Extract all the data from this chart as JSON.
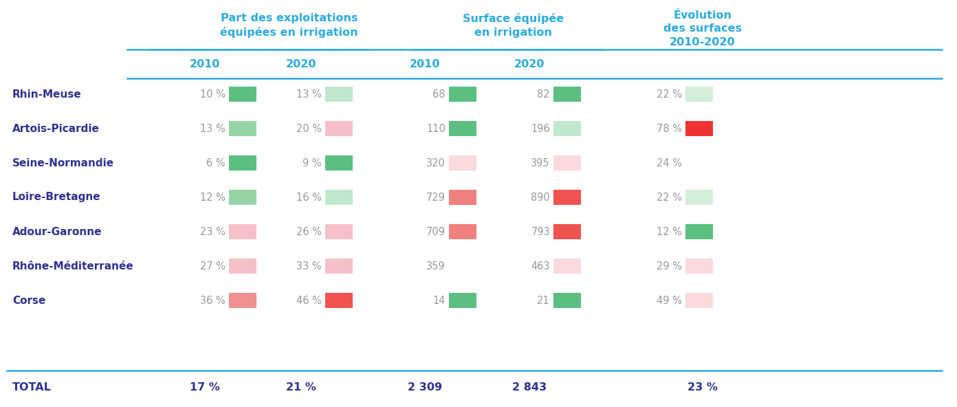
{
  "regions": [
    "Rhin-Meuse",
    "Artois-Picardie",
    "Seine-Normandie",
    "Loire-Bretagne",
    "Adour-Garonne",
    "Rhône-Méditerranée",
    "Corse"
  ],
  "expl_2010": [
    10,
    13,
    6,
    12,
    23,
    27,
    36
  ],
  "expl_2020": [
    13,
    20,
    9,
    16,
    26,
    33,
    46
  ],
  "surf_2010": [
    68,
    110,
    320,
    729,
    709,
    359,
    14
  ],
  "surf_2020": [
    82,
    196,
    395,
    890,
    793,
    463,
    21
  ],
  "evol": [
    22,
    78,
    24,
    22,
    12,
    29,
    49
  ],
  "total_expl_2010": "17 %",
  "total_expl_2020": "21 %",
  "total_surf_2010": "2 309",
  "total_surf_2020": "2 843",
  "total_evol": "23 %",
  "col_header1": "Part des exploitations\néquipées en irrigation",
  "col_header2": "Surface équipée\nen irrigation",
  "col_header3": "Évolution\ndes surfaces\n2010-2020",
  "sub_header_2010": "2010",
  "sub_header_2020": "2020",
  "header_color": "#29ABE2",
  "region_color": "#2E3192",
  "total_line_color": "#2E3192",
  "sep_line_color": "#29ABE2",
  "data_text_color": "#999999",
  "expl_2010_box_colors": [
    "#5BBF80",
    "#96D4A8",
    "#5BBF80",
    "#96D4A8",
    "#F5C0C8",
    "#F5C0C8",
    "#F09090"
  ],
  "expl_2020_box_colors": [
    "#C0E8CC",
    "#F5C0C8",
    "#5BBF80",
    "#C0E8CC",
    "#F5C0C8",
    "#F5C0C8",
    "#EF5350"
  ],
  "surf_2010_box_colors": [
    "#5BBF80",
    "#5BBF80",
    "#FADADD",
    "#F08080",
    "#F08080",
    null,
    "#5BBF80"
  ],
  "surf_2020_box_colors": [
    "#5BBF80",
    "#C0E8CC",
    "#FADADD",
    "#EF5350",
    "#EF5350",
    "#FADADD",
    "#5BBF80"
  ],
  "evol_box_colors": [
    "#D4EDD8",
    "#EF3333",
    null,
    "#D4EDD8",
    "#5BBF80",
    "#FADADD",
    "#FADADD"
  ],
  "background_color": "#FFFFFF"
}
